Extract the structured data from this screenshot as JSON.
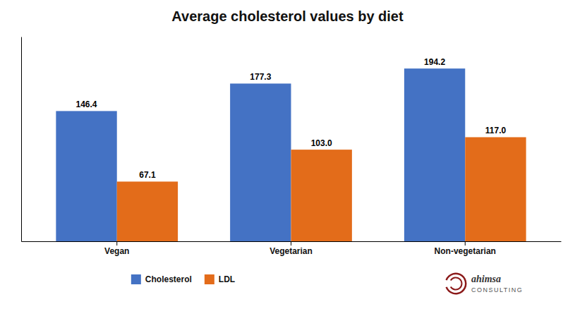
{
  "chart_data": {
    "type": "bar",
    "title": "Average cholesterol values by diet",
    "categories": [
      "Vegan",
      "Vegetarian",
      "Non-vegetarian"
    ],
    "series": [
      {
        "name": "Cholesterol",
        "color": "#4472C4",
        "values": [
          146.4,
          177.3,
          194.2
        ],
        "value_labels": [
          "146.4",
          "177.3",
          "194.2"
        ]
      },
      {
        "name": "LDL",
        "color": "#E36C1A",
        "values": [
          67.1,
          103.0,
          117.0
        ],
        "value_labels": [
          "67.1",
          "103.0",
          "117.0"
        ]
      }
    ],
    "ylim": [
      0,
      230
    ],
    "grid": false,
    "tick_labels": "x",
    "data_labels": true,
    "legend": "bottom",
    "annotations": [
      "ahimsa",
      "CONSULTING"
    ]
  }
}
